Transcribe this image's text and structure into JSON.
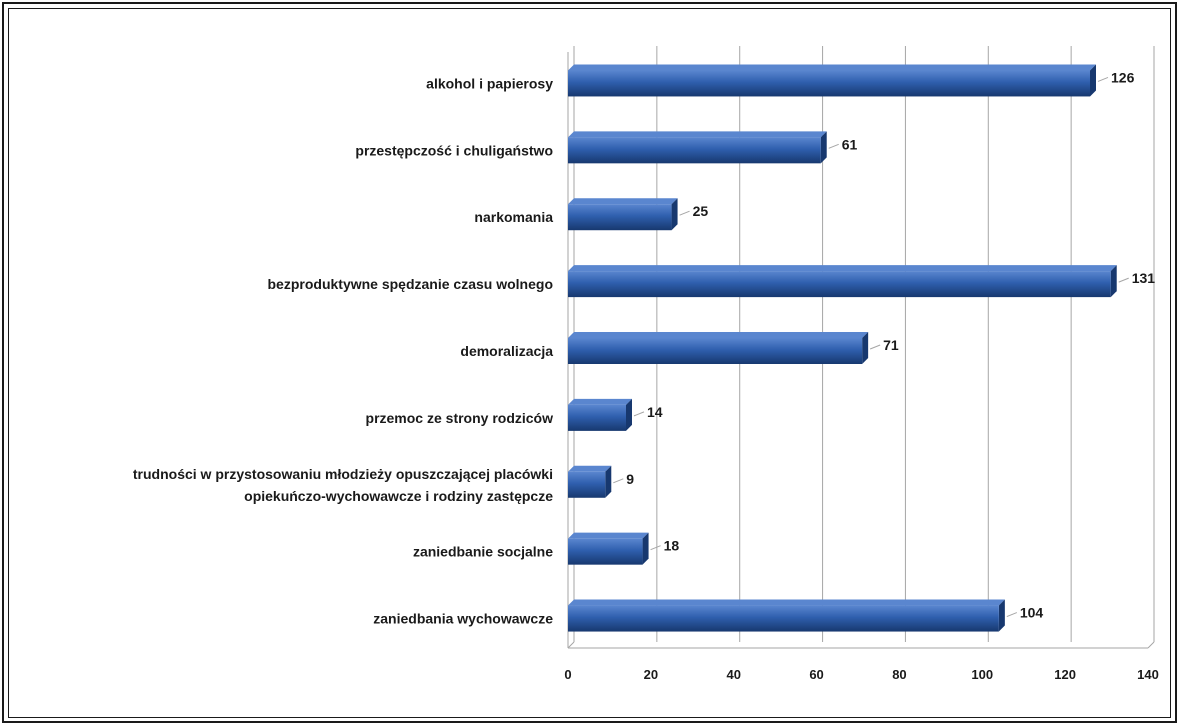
{
  "chart_data": {
    "type": "bar",
    "orientation": "horizontal",
    "categories": [
      "alkohol i papierosy",
      "przestępczość i chuligaństwo",
      "narkomania",
      "bezproduktywne spędzanie czasu wolnego",
      "demoralizacja",
      "przemoc ze strony rodziców",
      "trudności w przystosowaniu młodzieży opuszczającej placówki opiekuńczo-wychowawcze i rodziny zastępcze",
      "zaniedbanie socjalne",
      "zaniedbania wychowawcze"
    ],
    "category_lines": [
      [
        "alkohol i papierosy"
      ],
      [
        "przestępczość i chuligaństwo"
      ],
      [
        "narkomania"
      ],
      [
        "bezproduktywne spędzanie czasu wolnego"
      ],
      [
        "demoralizacja"
      ],
      [
        "przemoc ze strony rodziców"
      ],
      [
        "trudności w przystosowaniu młodzieży opuszczającej placówki",
        "opiekuńczo-wychowawcze i rodziny zastępcze"
      ],
      [
        "zaniedbanie socjalne"
      ],
      [
        "zaniedbania wychowawcze"
      ]
    ],
    "values": [
      126,
      61,
      25,
      131,
      71,
      14,
      9,
      18,
      104
    ],
    "xlim": [
      0,
      140
    ],
    "x_ticks": [
      0,
      20,
      40,
      60,
      80,
      100,
      120,
      140
    ],
    "grid": true,
    "legend": false,
    "title": "",
    "xlabel": "",
    "ylabel": "",
    "colors": {
      "bar_front": "#2f5fae",
      "bar_light": "#5a86cf",
      "bar_dark": "#17386f",
      "grid": "#a6a6a6",
      "text": "#1a1a1a"
    }
  }
}
